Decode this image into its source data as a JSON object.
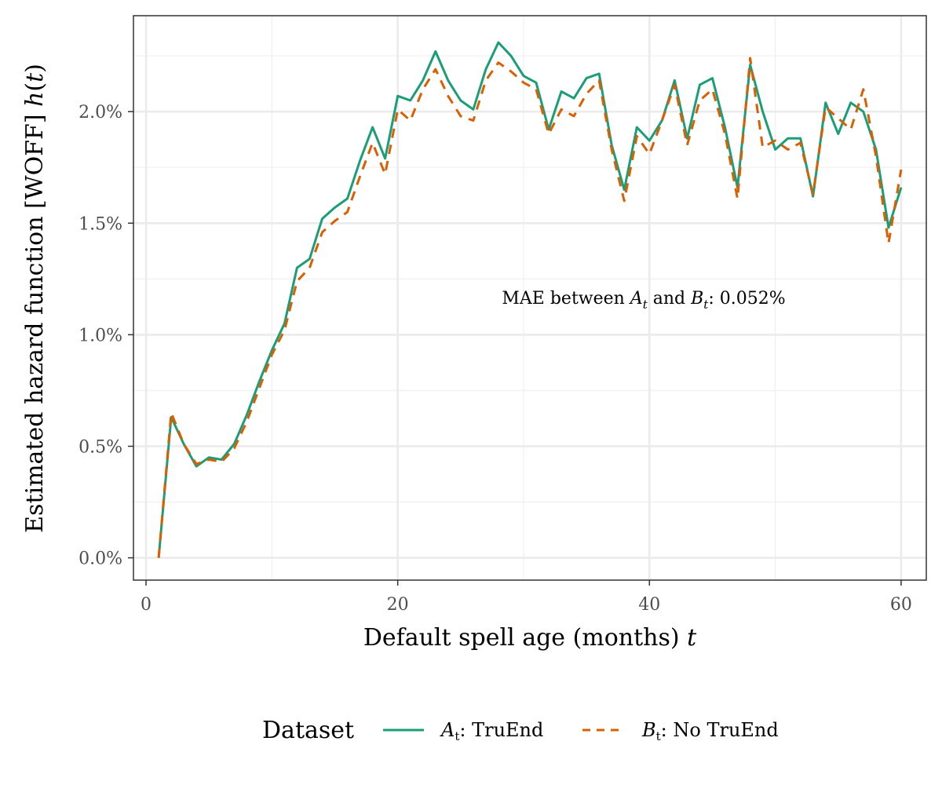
{
  "chart_data": {
    "type": "line",
    "xlabel": "Default spell age (months) t",
    "ylabel": "Estimated hazard function [WOFF] h(t)",
    "xlim": [
      -1,
      62
    ],
    "ylim": [
      -0.1,
      2.43
    ],
    "x_ticks": [
      0,
      20,
      40,
      60
    ],
    "x_tick_labels": [
      "0",
      "20",
      "40",
      "60"
    ],
    "y_ticks": [
      0.0,
      0.5,
      1.0,
      1.5,
      2.0
    ],
    "y_tick_labels": [
      "0.0%",
      "0.5%",
      "1.0%",
      "1.5%",
      "2.0%"
    ],
    "grid": true,
    "legend_position": "bottom",
    "legend_title": "Dataset",
    "annotation": "MAE between A_t and B_t: 0.052%",
    "x": [
      1,
      2,
      3,
      4,
      5,
      6,
      7,
      8,
      9,
      10,
      11,
      12,
      13,
      14,
      15,
      16,
      17,
      18,
      19,
      20,
      21,
      22,
      23,
      24,
      25,
      26,
      27,
      28,
      29,
      30,
      31,
      32,
      33,
      34,
      35,
      36,
      37,
      38,
      39,
      40,
      41,
      42,
      43,
      44,
      45,
      46,
      47,
      48,
      49,
      50,
      51,
      52,
      53,
      54,
      55,
      56,
      57,
      58,
      59,
      60
    ],
    "series": [
      {
        "name": "At: TruEnd",
        "color": "#1b9e77",
        "dash": "solid",
        "values": [
          0.0,
          0.63,
          0.51,
          0.41,
          0.45,
          0.44,
          0.51,
          0.64,
          0.79,
          0.93,
          1.05,
          1.3,
          1.34,
          1.52,
          1.57,
          1.61,
          1.78,
          1.93,
          1.79,
          2.07,
          2.05,
          2.14,
          2.27,
          2.14,
          2.05,
          2.01,
          2.19,
          2.31,
          2.25,
          2.16,
          2.13,
          1.92,
          2.09,
          2.06,
          2.15,
          2.17,
          1.85,
          1.65,
          1.93,
          1.87,
          1.96,
          2.14,
          1.88,
          2.12,
          2.15,
          1.93,
          1.66,
          2.21,
          2.0,
          1.83,
          1.88,
          1.88,
          1.62,
          2.04,
          1.9,
          2.04,
          2.0,
          1.83,
          1.48,
          1.66
        ]
      },
      {
        "name": "Bt: No TruEnd",
        "color": "#d95f02",
        "dash": "dashed",
        "values": [
          0.0,
          0.65,
          0.51,
          0.42,
          0.44,
          0.43,
          0.49,
          0.61,
          0.76,
          0.91,
          1.02,
          1.24,
          1.3,
          1.46,
          1.51,
          1.55,
          1.71,
          1.86,
          1.72,
          2.01,
          1.96,
          2.1,
          2.19,
          2.07,
          1.98,
          1.96,
          2.14,
          2.22,
          2.18,
          2.13,
          2.1,
          1.9,
          2.01,
          1.98,
          2.08,
          2.14,
          1.83,
          1.6,
          1.89,
          1.81,
          1.96,
          2.12,
          1.85,
          2.05,
          2.1,
          1.9,
          1.61,
          2.24,
          1.84,
          1.87,
          1.83,
          1.86,
          1.63,
          2.02,
          1.97,
          1.92,
          2.1,
          1.8,
          1.41,
          1.74
        ]
      }
    ]
  }
}
